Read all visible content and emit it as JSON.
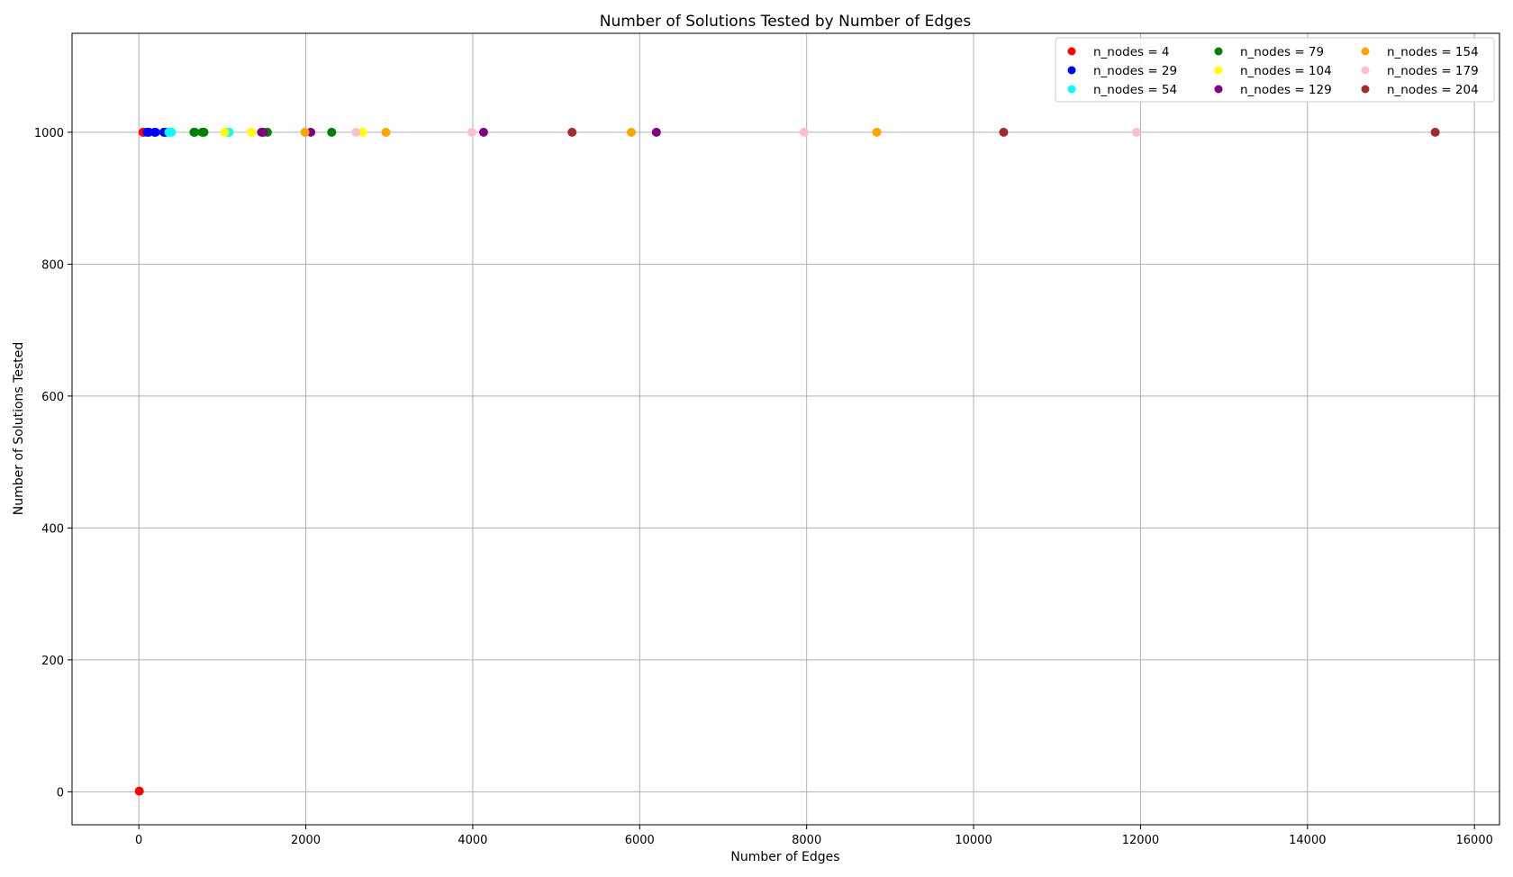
{
  "chart_data": {
    "type": "scatter",
    "title": "Number of Solutions Tested by Number of Edges",
    "xlabel": "Number of Edges",
    "ylabel": "Number of Solutions Tested",
    "xlim": [
      -800,
      16300
    ],
    "ylim": [
      -50,
      1150
    ],
    "xticks": [
      0,
      2000,
      4000,
      6000,
      8000,
      10000,
      12000,
      14000,
      16000
    ],
    "yticks": [
      0,
      200,
      400,
      600,
      800,
      1000
    ],
    "grid": true,
    "legend": {
      "placement": "top-right",
      "columns": 3
    },
    "series": [
      {
        "name": "n_nodes = 4",
        "color": "#ff0000",
        "x": [
          6,
          50,
          60
        ],
        "y": [
          1,
          1000,
          1000
        ]
      },
      {
        "name": "n_nodes = 29",
        "color": "#0000ff",
        "x": [
          100,
          120,
          190,
          200,
          300,
          320
        ],
        "y": [
          1000,
          1000,
          1000,
          1000,
          1000,
          1000
        ]
      },
      {
        "name": "n_nodes = 54",
        "color": "#00ffff",
        "x": [
          360,
          390,
          1070,
          1080
        ],
        "y": [
          1000,
          1000,
          1000,
          1000
        ]
      },
      {
        "name": "n_nodes = 79",
        "color": "#008000",
        "x": [
          660,
          670,
          760,
          780,
          1540,
          2310
        ],
        "y": [
          1000,
          1000,
          1000,
          1000,
          1000,
          1000
        ]
      },
      {
        "name": "n_nodes = 104",
        "color": "#ffff00",
        "x": [
          1030,
          1350,
          2680
        ],
        "y": [
          1000,
          1000,
          1000
        ]
      },
      {
        "name": "n_nodes = 129",
        "color": "#800080",
        "x": [
          1470,
          1490,
          2060,
          4130,
          6200
        ],
        "y": [
          1000,
          1000,
          1000,
          1000,
          1000
        ]
      },
      {
        "name": "n_nodes = 154",
        "color": "#ffa500",
        "x": [
          1990,
          2960,
          5900,
          8840
        ],
        "y": [
          1000,
          1000,
          1000,
          1000
        ]
      },
      {
        "name": "n_nodes = 179",
        "color": "#ffc0cb",
        "x": [
          2600,
          3990,
          7970,
          11950
        ],
        "y": [
          1000,
          1000,
          1000,
          1000
        ]
      },
      {
        "name": "n_nodes = 204",
        "color": "#a52a2a",
        "x": [
          5190,
          10360,
          15530
        ],
        "y": [
          1000,
          1000,
          1000
        ]
      }
    ]
  }
}
